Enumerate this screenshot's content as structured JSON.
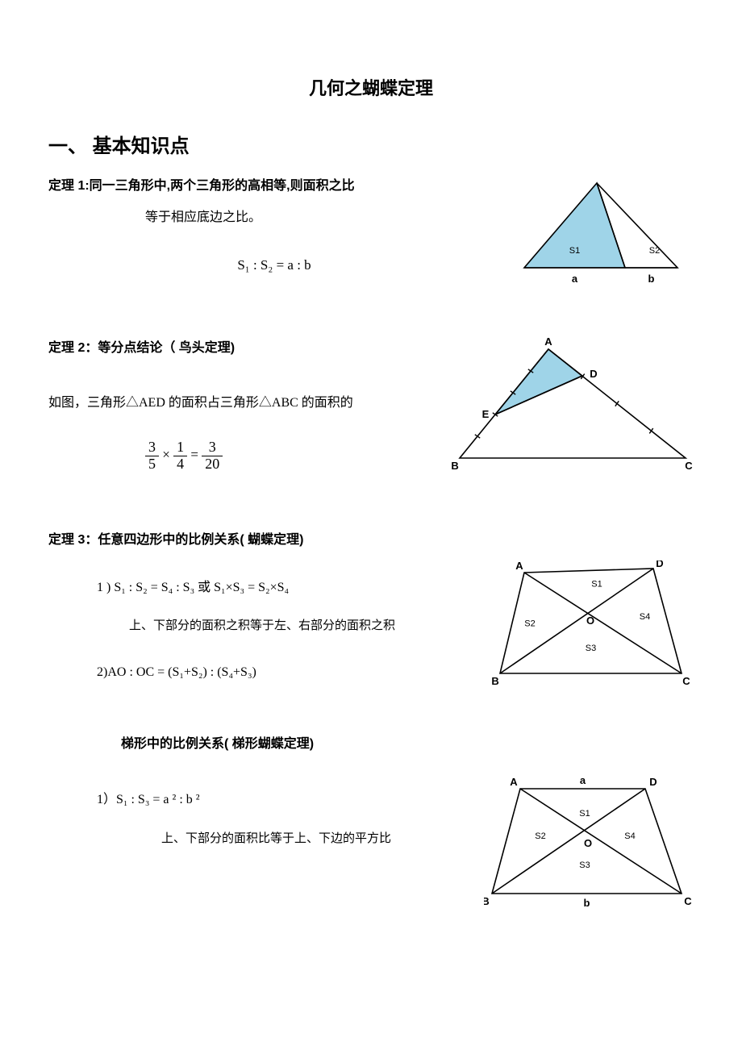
{
  "doc": {
    "title": "几何之蝴蝶定理",
    "section1_heading": "一、 基本知识点",
    "theorem1": {
      "title": "定理 1:同一三角形中,两个三角形的高相等,则面积之比",
      "subline": "等于相应底边之比。",
      "formula": "S₁ : S₂  = a :  b"
    },
    "theorem2": {
      "title": "定理 2：等分点结论（ 鸟头定理)",
      "body": "如图，三角形△AED 的面积占三角形△ABC 的面积的",
      "frac_a_num": "3",
      "frac_a_den": "5",
      "frac_b_num": "1",
      "frac_b_den": "4",
      "frac_r_num": "3",
      "frac_r_den": "20"
    },
    "theorem3": {
      "title": "定理 3：任意四边形中的比例关系( 蝴蝶定理)",
      "line1_pre": "1 ) S₁ : S₂  = S₄ :  S₃         或      S₁×S₃   =    S₂×S₄",
      "explain1": "上、下部分的面积之积等于左、右部分的面积之积",
      "line2": "2)AO : OC = (S₁+S₂) : (S₄+S₃)",
      "trap_title": "梯形中的比例关系( 梯形蝴蝶定理)",
      "trap_line1": "1）S₁ : S₃   = a ² :  b ²",
      "trap_explain": "上、下部分的面积比等于上、下边的平方比"
    }
  },
  "diagrams": {
    "d1": {
      "fill": "#9fd4e8",
      "stroke": "#000000",
      "labels": {
        "S1": "S1",
        "S2": "S2",
        "a": "a",
        "b": "b"
      },
      "geom": {
        "apex": [
          100,
          10
        ],
        "baseL": [
          10,
          115
        ],
        "mid": [
          135,
          115
        ],
        "baseR": [
          200,
          115
        ]
      }
    },
    "d2": {
      "fill": "#9fd4e8",
      "stroke": "#000000",
      "labels": {
        "A": "A",
        "B": "B",
        "C": "C",
        "D": "D",
        "E": "E"
      },
      "ticks": true,
      "geom": {
        "A": [
          120,
          15
        ],
        "B": [
          10,
          150
        ],
        "C": [
          290,
          150
        ],
        "D": [
          162,
          48
        ],
        "E": [
          54,
          96
        ]
      }
    },
    "d3": {
      "stroke": "#000000",
      "labels": {
        "A": "A",
        "B": "B",
        "C": "C",
        "D": "D",
        "O": "O",
        "S1": "S1",
        "S2": "S2",
        "S3": "S3",
        "S4": "S4"
      },
      "geom": {
        "A": [
          40,
          15
        ],
        "D": [
          200,
          10
        ],
        "B": [
          10,
          140
        ],
        "C": [
          235,
          140
        ],
        "O": [
          120,
          65
        ]
      }
    },
    "d4": {
      "stroke": "#000000",
      "labels": {
        "A": "A",
        "B": "B",
        "C": "C",
        "D": "D",
        "O": "O",
        "S1": "S1",
        "S2": "S2",
        "S3": "S3",
        "S4": "S4",
        "a": "a",
        "b": "b"
      },
      "geom": {
        "A": [
          45,
          20
        ],
        "D": [
          200,
          20
        ],
        "B": [
          10,
          150
        ],
        "C": [
          245,
          150
        ],
        "O": [
          125,
          76
        ]
      }
    }
  }
}
